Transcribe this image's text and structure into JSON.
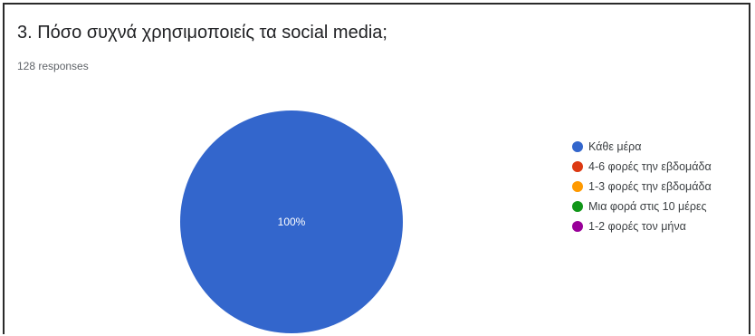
{
  "form": {
    "question": "3. Πόσο συχνά χρησιμοποιείς τα social media;",
    "responses": "128 responses"
  },
  "chart_data": {
    "type": "pie",
    "categories": [
      "Κάθε μέρα",
      "4-6 φορές την εβδομάδα",
      "1-3 φορές την εβδομάδα",
      "Μια φορά στις 10 μέρες",
      "1-2 φορές τον μήνα"
    ],
    "values": [
      100,
      0,
      0,
      0,
      0
    ],
    "colors": [
      "#3366cc",
      "#dc3912",
      "#ff9900",
      "#109618",
      "#990099"
    ],
    "slice_labels": [
      "100%"
    ],
    "legend_position": "right"
  }
}
